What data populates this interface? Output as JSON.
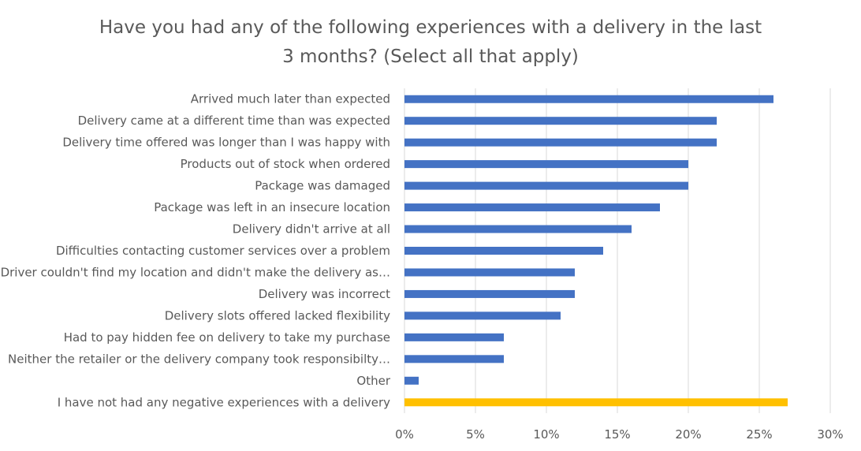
{
  "chart_data": {
    "type": "bar",
    "orientation": "horizontal",
    "title_lines": [
      "Have you had any of the following experiences with a delivery in the last",
      "3 months? (Select all that apply)"
    ],
    "categories": [
      "Arrived much later than expected",
      "Delivery came at a different time than was expected",
      "Delivery time offered was longer than I was happy with",
      "Products out of stock when ordered",
      "Package was damaged",
      "Package was left in an insecure location",
      "Delivery didn't arrive at all",
      "Difficulties contacting customer services over a problem",
      "Driver couldn't find my location and didn't make the delivery as…",
      "Delivery was incorrect",
      "Delivery slots offered lacked flexibility",
      "Had to pay hidden fee on delivery to take my purchase",
      "Neither the retailer or the delivery company took responsibilty…",
      "Other",
      "I have not had any negative experiences with a delivery"
    ],
    "values": [
      26,
      22,
      22,
      20,
      20,
      18,
      16,
      14,
      12,
      12,
      11,
      7,
      7,
      1,
      27
    ],
    "bar_colors": [
      "#4472c4",
      "#4472c4",
      "#4472c4",
      "#4472c4",
      "#4472c4",
      "#4472c4",
      "#4472c4",
      "#4472c4",
      "#4472c4",
      "#4472c4",
      "#4472c4",
      "#4472c4",
      "#4472c4",
      "#4472c4",
      "#ffc000"
    ],
    "xlim": [
      0,
      30
    ],
    "xticks": [
      0,
      5,
      10,
      15,
      20,
      25,
      30
    ],
    "xtick_labels": [
      "0%",
      "5%",
      "10%",
      "15%",
      "20%",
      "25%",
      "30%"
    ],
    "xlabel": "",
    "ylabel": "",
    "grid": true,
    "legend": "none"
  }
}
